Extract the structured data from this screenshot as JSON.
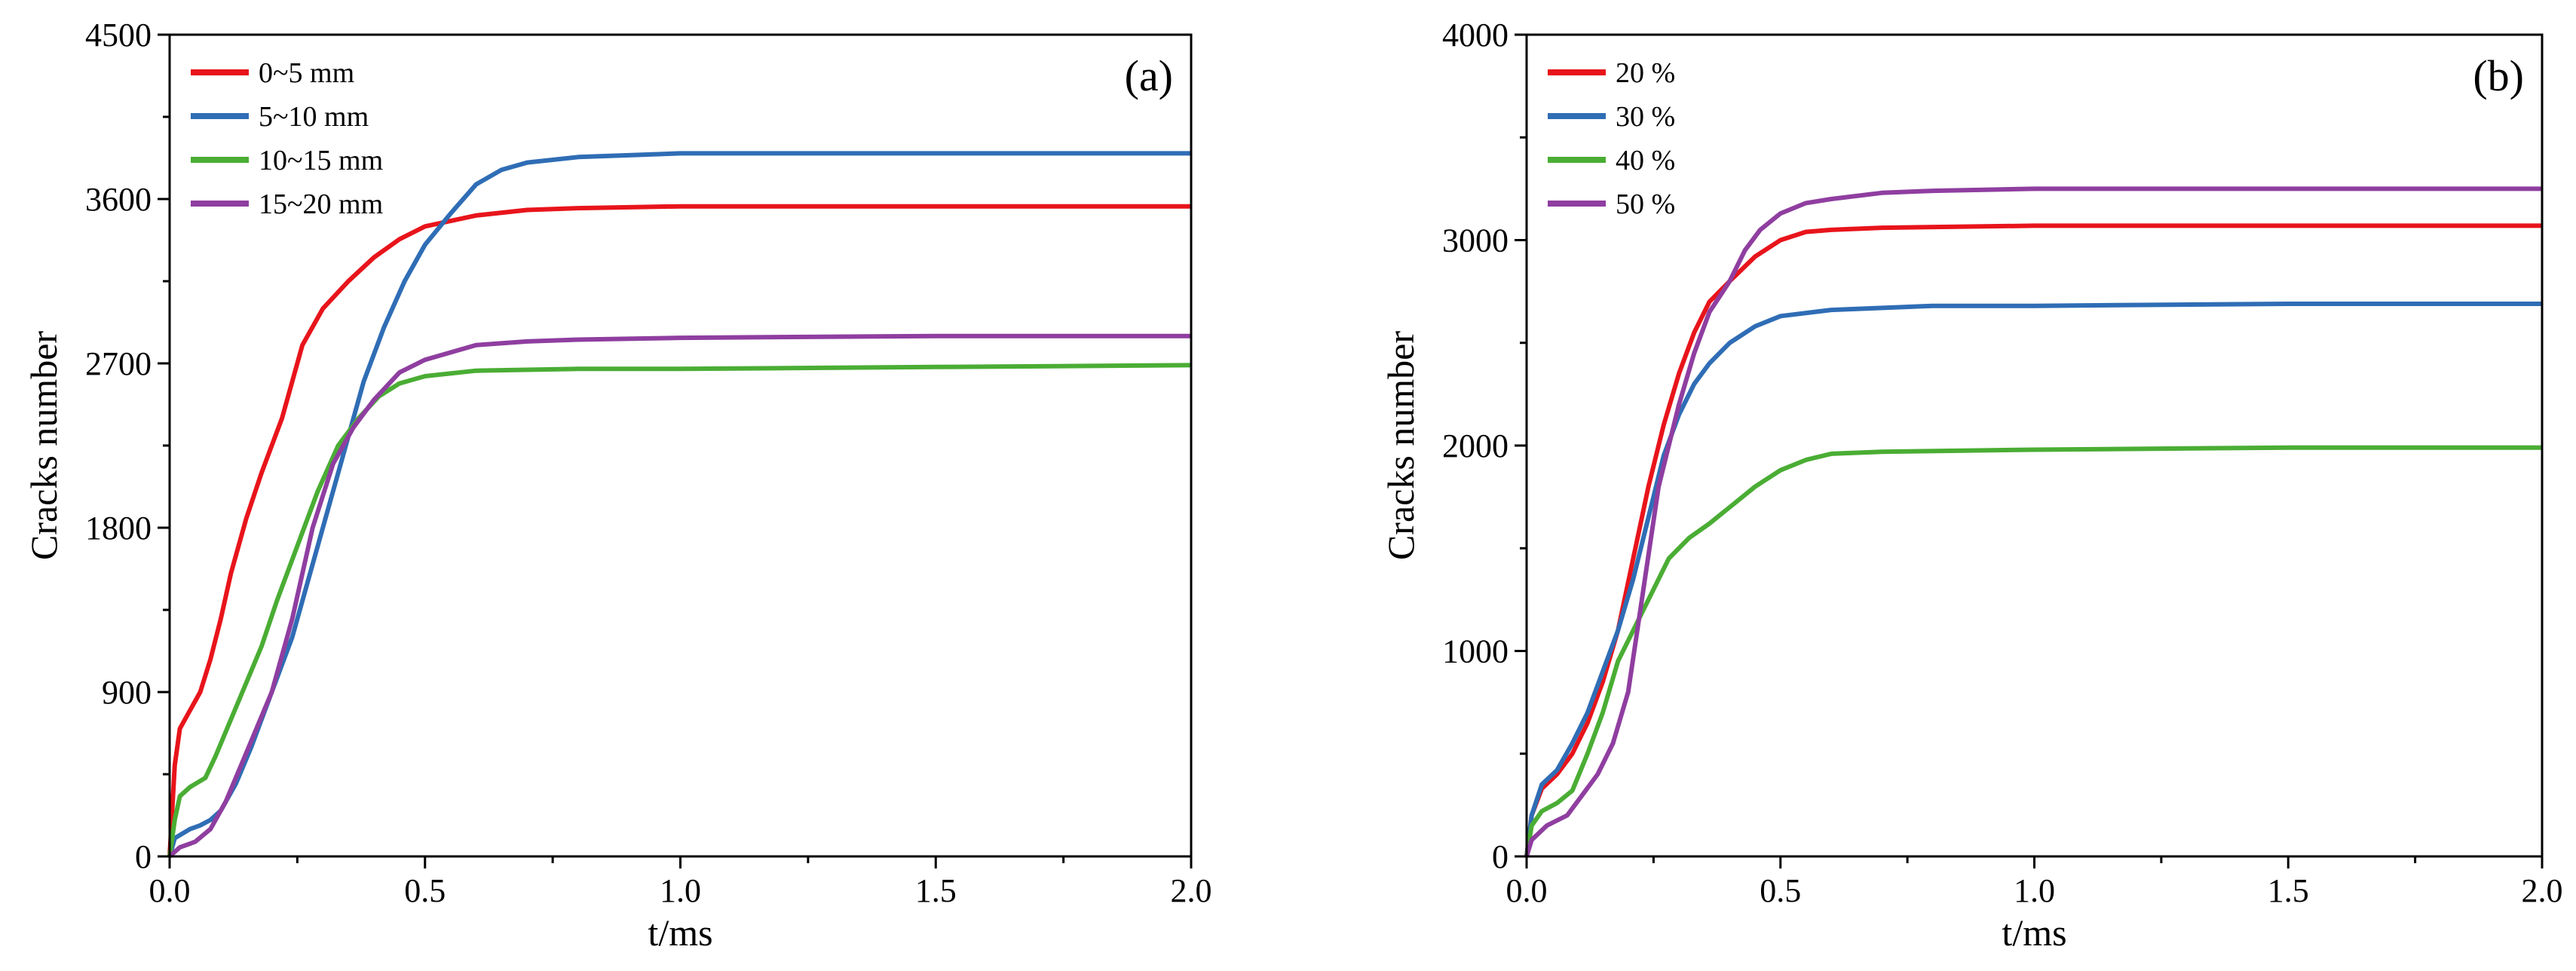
{
  "chart_data": [
    {
      "type": "line",
      "panel_label": "(a)",
      "xlabel": "t/ms",
      "ylabel": "Cracks number",
      "xlim": [
        0,
        2.0
      ],
      "ylim": [
        0,
        4500
      ],
      "xticks": [
        "0.0",
        "0.5",
        "1.0",
        "1.5",
        "2.0"
      ],
      "yticks": [
        "0",
        "900",
        "1800",
        "2700",
        "3600",
        "4500"
      ],
      "legend_position": "top-left",
      "series": [
        {
          "name": "0~5 mm",
          "color": "#e8141b",
          "points": [
            [
              0,
              0
            ],
            [
              0.005,
              250
            ],
            [
              0.01,
              500
            ],
            [
              0.02,
              700
            ],
            [
              0.04,
              800
            ],
            [
              0.06,
              900
            ],
            [
              0.08,
              1080
            ],
            [
              0.1,
              1300
            ],
            [
              0.12,
              1550
            ],
            [
              0.15,
              1850
            ],
            [
              0.18,
              2100
            ],
            [
              0.22,
              2400
            ],
            [
              0.26,
              2800
            ],
            [
              0.3,
              3000
            ],
            [
              0.35,
              3150
            ],
            [
              0.4,
              3280
            ],
            [
              0.45,
              3380
            ],
            [
              0.5,
              3450
            ],
            [
              0.55,
              3480
            ],
            [
              0.6,
              3510
            ],
            [
              0.7,
              3540
            ],
            [
              0.8,
              3550
            ],
            [
              1.0,
              3560
            ],
            [
              1.5,
              3560
            ],
            [
              2.0,
              3560
            ]
          ]
        },
        {
          "name": "5~10 mm",
          "color": "#2f6db5",
          "points": [
            [
              0,
              0
            ],
            [
              0.01,
              100
            ],
            [
              0.04,
              150
            ],
            [
              0.06,
              170
            ],
            [
              0.08,
              200
            ],
            [
              0.1,
              250
            ],
            [
              0.13,
              400
            ],
            [
              0.16,
              600
            ],
            [
              0.2,
              900
            ],
            [
              0.24,
              1200
            ],
            [
              0.28,
              1600
            ],
            [
              0.32,
              2000
            ],
            [
              0.35,
              2300
            ],
            [
              0.38,
              2600
            ],
            [
              0.42,
              2900
            ],
            [
              0.46,
              3150
            ],
            [
              0.5,
              3350
            ],
            [
              0.55,
              3520
            ],
            [
              0.6,
              3680
            ],
            [
              0.65,
              3760
            ],
            [
              0.7,
              3800
            ],
            [
              0.8,
              3830
            ],
            [
              0.9,
              3840
            ],
            [
              1.0,
              3850
            ],
            [
              1.5,
              3850
            ],
            [
              2.0,
              3850
            ]
          ]
        },
        {
          "name": "10~15 mm",
          "color": "#4aad34",
          "points": [
            [
              0,
              0
            ],
            [
              0.01,
              200
            ],
            [
              0.02,
              330
            ],
            [
              0.04,
              380
            ],
            [
              0.07,
              430
            ],
            [
              0.09,
              550
            ],
            [
              0.12,
              750
            ],
            [
              0.15,
              950
            ],
            [
              0.18,
              1150
            ],
            [
              0.21,
              1400
            ],
            [
              0.25,
              1700
            ],
            [
              0.29,
              2000
            ],
            [
              0.33,
              2250
            ],
            [
              0.37,
              2400
            ],
            [
              0.41,
              2520
            ],
            [
              0.45,
              2590
            ],
            [
              0.5,
              2630
            ],
            [
              0.6,
              2660
            ],
            [
              0.8,
              2670
            ],
            [
              1.0,
              2670
            ],
            [
              1.5,
              2680
            ],
            [
              2.0,
              2690
            ]
          ]
        },
        {
          "name": "15~20 mm",
          "color": "#8f3ea0",
          "points": [
            [
              0,
              0
            ],
            [
              0.02,
              50
            ],
            [
              0.05,
              80
            ],
            [
              0.08,
              150
            ],
            [
              0.11,
              300
            ],
            [
              0.14,
              500
            ],
            [
              0.17,
              700
            ],
            [
              0.2,
              900
            ],
            [
              0.24,
              1300
            ],
            [
              0.28,
              1800
            ],
            [
              0.32,
              2150
            ],
            [
              0.36,
              2350
            ],
            [
              0.4,
              2500
            ],
            [
              0.45,
              2650
            ],
            [
              0.5,
              2720
            ],
            [
              0.55,
              2760
            ],
            [
              0.6,
              2800
            ],
            [
              0.7,
              2820
            ],
            [
              0.8,
              2830
            ],
            [
              1.0,
              2840
            ],
            [
              1.5,
              2850
            ],
            [
              2.0,
              2850
            ]
          ]
        }
      ]
    },
    {
      "type": "line",
      "panel_label": "(b)",
      "xlabel": "t/ms",
      "ylabel": "Cracks number",
      "xlim": [
        0,
        2.0
      ],
      "ylim": [
        0,
        4000
      ],
      "xticks": [
        "0.0",
        "0.5",
        "1.0",
        "1.5",
        "2.0"
      ],
      "yticks": [
        "0",
        "1000",
        "2000",
        "3000",
        "4000"
      ],
      "legend_position": "top-left",
      "series": [
        {
          "name": "20 %",
          "color": "#e8141b",
          "points": [
            [
              0,
              0
            ],
            [
              0.01,
              200
            ],
            [
              0.03,
              330
            ],
            [
              0.06,
              400
            ],
            [
              0.09,
              500
            ],
            [
              0.12,
              650
            ],
            [
              0.15,
              850
            ],
            [
              0.18,
              1100
            ],
            [
              0.21,
              1450
            ],
            [
              0.24,
              1800
            ],
            [
              0.27,
              2100
            ],
            [
              0.3,
              2350
            ],
            [
              0.33,
              2550
            ],
            [
              0.36,
              2700
            ],
            [
              0.4,
              2800
            ],
            [
              0.45,
              2920
            ],
            [
              0.5,
              3000
            ],
            [
              0.55,
              3040
            ],
            [
              0.6,
              3050
            ],
            [
              0.7,
              3060
            ],
            [
              1.0,
              3070
            ],
            [
              1.5,
              3070
            ],
            [
              2.0,
              3070
            ]
          ]
        },
        {
          "name": "30 %",
          "color": "#2f6db5",
          "points": [
            [
              0,
              0
            ],
            [
              0.01,
              200
            ],
            [
              0.03,
              350
            ],
            [
              0.06,
              420
            ],
            [
              0.09,
              550
            ],
            [
              0.12,
              700
            ],
            [
              0.15,
              900
            ],
            [
              0.18,
              1100
            ],
            [
              0.21,
              1350
            ],
            [
              0.24,
              1650
            ],
            [
              0.27,
              1950
            ],
            [
              0.3,
              2150
            ],
            [
              0.33,
              2300
            ],
            [
              0.36,
              2400
            ],
            [
              0.4,
              2500
            ],
            [
              0.45,
              2580
            ],
            [
              0.5,
              2630
            ],
            [
              0.6,
              2660
            ],
            [
              0.8,
              2680
            ],
            [
              1.0,
              2680
            ],
            [
              1.5,
              2690
            ],
            [
              2.0,
              2690
            ]
          ]
        },
        {
          "name": "40 %",
          "color": "#4aad34",
          "points": [
            [
              0,
              0
            ],
            [
              0.01,
              150
            ],
            [
              0.03,
              220
            ],
            [
              0.06,
              260
            ],
            [
              0.09,
              320
            ],
            [
              0.12,
              500
            ],
            [
              0.15,
              700
            ],
            [
              0.18,
              950
            ],
            [
              0.21,
              1100
            ],
            [
              0.24,
              1250
            ],
            [
              0.28,
              1450
            ],
            [
              0.32,
              1550
            ],
            [
              0.36,
              1620
            ],
            [
              0.4,
              1700
            ],
            [
              0.45,
              1800
            ],
            [
              0.5,
              1880
            ],
            [
              0.55,
              1930
            ],
            [
              0.6,
              1960
            ],
            [
              0.7,
              1970
            ],
            [
              1.0,
              1980
            ],
            [
              1.5,
              1990
            ],
            [
              2.0,
              1990
            ]
          ]
        },
        {
          "name": "50 %",
          "color": "#8f3ea0",
          "points": [
            [
              0,
              0
            ],
            [
              0.01,
              80
            ],
            [
              0.04,
              150
            ],
            [
              0.08,
              200
            ],
            [
              0.11,
              300
            ],
            [
              0.14,
              400
            ],
            [
              0.17,
              550
            ],
            [
              0.2,
              800
            ],
            [
              0.23,
              1300
            ],
            [
              0.26,
              1800
            ],
            [
              0.3,
              2200
            ],
            [
              0.33,
              2450
            ],
            [
              0.36,
              2650
            ],
            [
              0.4,
              2800
            ],
            [
              0.43,
              2950
            ],
            [
              0.46,
              3050
            ],
            [
              0.5,
              3130
            ],
            [
              0.55,
              3180
            ],
            [
              0.6,
              3200
            ],
            [
              0.7,
              3230
            ],
            [
              0.8,
              3240
            ],
            [
              1.0,
              3250
            ],
            [
              1.5,
              3250
            ],
            [
              2.0,
              3250
            ]
          ]
        }
      ]
    }
  ]
}
